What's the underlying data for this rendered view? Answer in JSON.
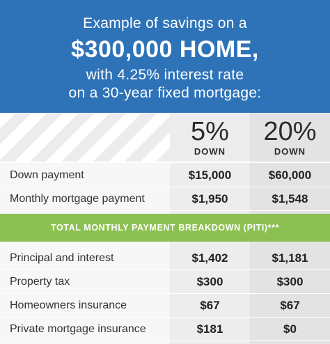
{
  "header": {
    "line1": "Example of savings on a",
    "line2": "$300,000 HOME,",
    "line3": "with 4.25% interest rate",
    "line4": "on a 30-year fixed mortgage:"
  },
  "columns": [
    {
      "percent": "5%",
      "label": "DOWN"
    },
    {
      "percent": "20%",
      "label": "DOWN"
    }
  ],
  "top_rows": [
    {
      "label": "Down payment",
      "a": "$15,000",
      "b": "$60,000"
    },
    {
      "label": "Monthly mortgage payment",
      "a": "$1,950",
      "b": "$1,548"
    }
  ],
  "banner": "TOTAL MONTHLY PAYMENT BREAKDOWN (PITI)***",
  "breakdown_rows": [
    {
      "label": "Principal and interest",
      "a": "$1,402",
      "b": "$1,181"
    },
    {
      "label": "Property tax",
      "a": "$300",
      "b": "$300"
    },
    {
      "label": "Homeowners insurance",
      "a": "$67",
      "b": "$67"
    },
    {
      "label": "Private mortgage insurance",
      "a": "$181",
      "b": "$0"
    }
  ],
  "colors": {
    "header": "#2e73b8",
    "banner": "#8dc052"
  }
}
